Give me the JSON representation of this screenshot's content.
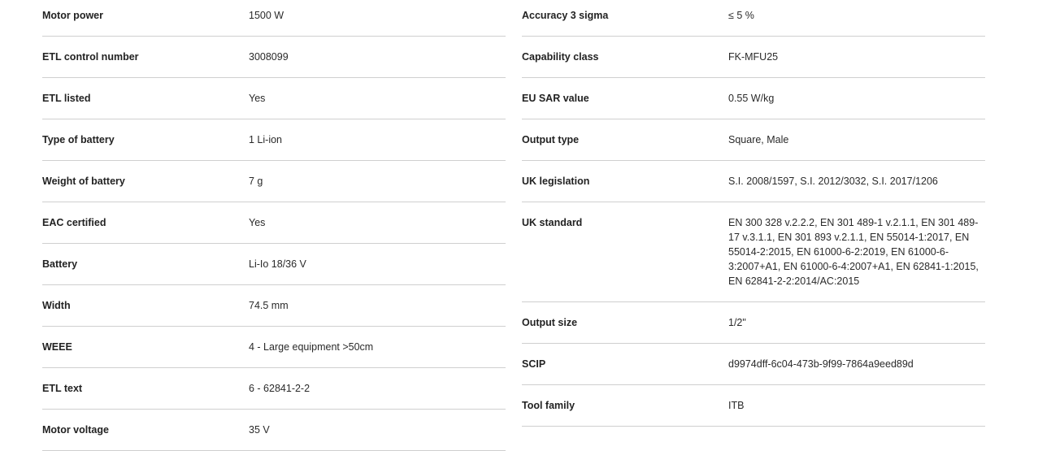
{
  "left": [
    {
      "label": "Motor power",
      "value": "1500 W"
    },
    {
      "label": "ETL control number",
      "value": "3008099"
    },
    {
      "label": "ETL listed",
      "value": "Yes"
    },
    {
      "label": "Type of battery",
      "value": "1 Li-ion"
    },
    {
      "label": "Weight of battery",
      "value": "7 g"
    },
    {
      "label": "EAC certified",
      "value": "Yes"
    },
    {
      "label": "Battery",
      "value": "Li-Io 18/36 V"
    },
    {
      "label": "Width",
      "value": "74.5 mm"
    },
    {
      "label": "WEEE",
      "value": "4 - Large equipment >50cm"
    },
    {
      "label": "ETL text",
      "value": "6 - 62841-2-2"
    },
    {
      "label": "Motor voltage",
      "value": "35 V"
    }
  ],
  "right": [
    {
      "label": "Accuracy 3 sigma",
      "value": "≤ 5 %"
    },
    {
      "label": "Capability class",
      "value": "FK-MFU25"
    },
    {
      "label": "EU SAR value",
      "value": "0.55 W/kg"
    },
    {
      "label": "Output type",
      "value": "Square, Male"
    },
    {
      "label": "UK legislation",
      "value": "S.I. 2008/1597, S.I. 2012/3032, S.I. 2017/1206"
    },
    {
      "label": "UK standard",
      "value": "EN 300 328 v.2.2.2, EN 301 489-1 v.2.1.1, EN 301 489-17 v.3.1.1, EN 301 893 v.2.1.1, EN 55014-1:2017, EN 55014-2:2015, EN 61000-6-2:2019, EN 61000-6-3:2007+A1, EN 61000-6-4:2007+A1, EN 62841-1:2015, EN 62841-2-2:2014/AC:2015"
    },
    {
      "label": "Output size",
      "value": "1/2\""
    },
    {
      "label": "SCIP",
      "value": "d9974dff-6c04-473b-9f99-7864a9eed89d"
    },
    {
      "label": "Tool family",
      "value": "ITB"
    }
  ]
}
